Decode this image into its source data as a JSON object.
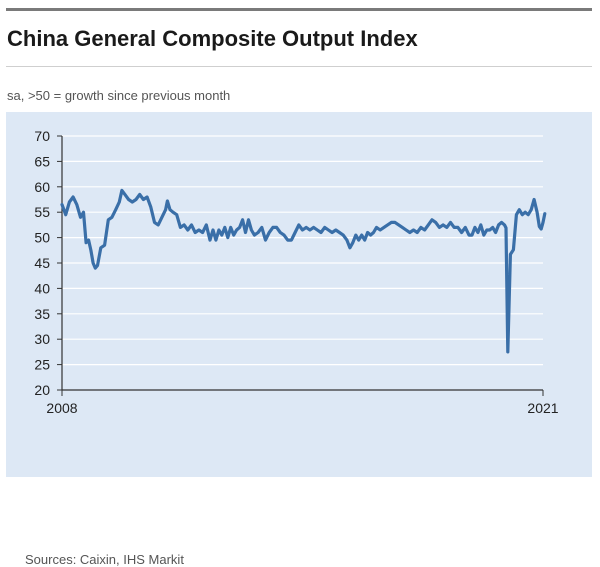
{
  "header": {
    "title": "China General Composite Output Index",
    "subtitle": "sa, >50 = growth since previous month"
  },
  "footer": {
    "source": "Sources: Caixin, IHS Markit"
  },
  "colors": {
    "line": "#3a6fa8",
    "panel": "#dde8f5",
    "grid": "#ffffff",
    "axis": "#333333"
  },
  "chart_data": {
    "type": "line",
    "title": "China General Composite Output Index",
    "subtitle": "sa, >50 = growth since previous month",
    "xlabel": "",
    "ylabel": "",
    "ylim": [
      20,
      70
    ],
    "yticks": [
      20,
      25,
      30,
      35,
      40,
      45,
      50,
      55,
      60,
      65,
      70
    ],
    "xlim": [
      2008.0,
      2021.0
    ],
    "xtick_labels": [
      {
        "x": 2008.0,
        "label": "2008"
      },
      {
        "x": 2021.0,
        "label": "2021"
      }
    ],
    "grid": true,
    "legend": "none",
    "series": [
      {
        "name": "China General Composite Output Index",
        "points": [
          [
            2008.0,
            56.5
          ],
          [
            2008.1,
            54.5
          ],
          [
            2008.2,
            57.0
          ],
          [
            2008.3,
            58.0
          ],
          [
            2008.4,
            56.5
          ],
          [
            2008.5,
            54.0
          ],
          [
            2008.58,
            55.0
          ],
          [
            2008.65,
            49.0
          ],
          [
            2008.72,
            49.5
          ],
          [
            2008.78,
            47.5
          ],
          [
            2008.84,
            45.0
          ],
          [
            2008.9,
            44.0
          ],
          [
            2008.96,
            44.5
          ],
          [
            2009.05,
            48.0
          ],
          [
            2009.15,
            48.5
          ],
          [
            2009.25,
            53.5
          ],
          [
            2009.35,
            54.0
          ],
          [
            2009.45,
            55.5
          ],
          [
            2009.55,
            57.0
          ],
          [
            2009.62,
            59.3
          ],
          [
            2009.7,
            58.5
          ],
          [
            2009.8,
            57.5
          ],
          [
            2009.9,
            57.0
          ],
          [
            2010.0,
            57.5
          ],
          [
            2010.1,
            58.5
          ],
          [
            2010.2,
            57.5
          ],
          [
            2010.3,
            58.0
          ],
          [
            2010.4,
            56.0
          ],
          [
            2010.5,
            53.0
          ],
          [
            2010.6,
            52.5
          ],
          [
            2010.7,
            54.0
          ],
          [
            2010.8,
            55.5
          ],
          [
            2010.85,
            57.2
          ],
          [
            2010.92,
            55.5
          ],
          [
            2011.0,
            55.0
          ],
          [
            2011.1,
            54.5
          ],
          [
            2011.2,
            52.0
          ],
          [
            2011.3,
            52.5
          ],
          [
            2011.4,
            51.5
          ],
          [
            2011.5,
            52.5
          ],
          [
            2011.6,
            51.0
          ],
          [
            2011.7,
            51.5
          ],
          [
            2011.8,
            51.0
          ],
          [
            2011.9,
            52.5
          ],
          [
            2012.0,
            49.5
          ],
          [
            2012.08,
            51.5
          ],
          [
            2012.16,
            49.5
          ],
          [
            2012.24,
            51.5
          ],
          [
            2012.32,
            50.5
          ],
          [
            2012.4,
            52.0
          ],
          [
            2012.48,
            50.0
          ],
          [
            2012.56,
            52.0
          ],
          [
            2012.64,
            50.5
          ],
          [
            2012.72,
            51.5
          ],
          [
            2012.8,
            52.0
          ],
          [
            2012.88,
            53.5
          ],
          [
            2012.96,
            51.0
          ],
          [
            2013.04,
            53.5
          ],
          [
            2013.12,
            51.5
          ],
          [
            2013.2,
            50.5
          ],
          [
            2013.3,
            51.0
          ],
          [
            2013.4,
            52.0
          ],
          [
            2013.5,
            49.5
          ],
          [
            2013.6,
            51.0
          ],
          [
            2013.7,
            52.0
          ],
          [
            2013.8,
            52.0
          ],
          [
            2013.9,
            51.0
          ],
          [
            2014.0,
            50.5
          ],
          [
            2014.1,
            49.5
          ],
          [
            2014.2,
            49.5
          ],
          [
            2014.3,
            51.0
          ],
          [
            2014.4,
            52.5
          ],
          [
            2014.5,
            51.5
          ],
          [
            2014.6,
            52.0
          ],
          [
            2014.7,
            51.5
          ],
          [
            2014.8,
            52.0
          ],
          [
            2014.9,
            51.5
          ],
          [
            2015.0,
            51.0
          ],
          [
            2015.1,
            52.0
          ],
          [
            2015.2,
            51.5
          ],
          [
            2015.3,
            51.0
          ],
          [
            2015.4,
            51.5
          ],
          [
            2015.5,
            51.0
          ],
          [
            2015.6,
            50.5
          ],
          [
            2015.7,
            49.5
          ],
          [
            2015.78,
            48.0
          ],
          [
            2015.86,
            49.0
          ],
          [
            2015.94,
            50.5
          ],
          [
            2016.02,
            49.5
          ],
          [
            2016.1,
            50.5
          ],
          [
            2016.18,
            49.5
          ],
          [
            2016.26,
            51.0
          ],
          [
            2016.34,
            50.5
          ],
          [
            2016.42,
            51.0
          ],
          [
            2016.5,
            52.0
          ],
          [
            2016.6,
            51.5
          ],
          [
            2016.7,
            52.0
          ],
          [
            2016.8,
            52.5
          ],
          [
            2016.9,
            53.0
          ],
          [
            2017.0,
            53.0
          ],
          [
            2017.1,
            52.5
          ],
          [
            2017.2,
            52.0
          ],
          [
            2017.3,
            51.5
          ],
          [
            2017.4,
            51.0
          ],
          [
            2017.5,
            51.5
          ],
          [
            2017.6,
            51.0
          ],
          [
            2017.7,
            52.0
          ],
          [
            2017.8,
            51.5
          ],
          [
            2017.9,
            52.5
          ],
          [
            2018.0,
            53.5
          ],
          [
            2018.1,
            53.0
          ],
          [
            2018.2,
            52.0
          ],
          [
            2018.3,
            52.5
          ],
          [
            2018.4,
            52.0
          ],
          [
            2018.5,
            53.0
          ],
          [
            2018.6,
            52.0
          ],
          [
            2018.7,
            52.0
          ],
          [
            2018.8,
            51.0
          ],
          [
            2018.9,
            52.0
          ],
          [
            2019.0,
            50.5
          ],
          [
            2019.08,
            50.5
          ],
          [
            2019.16,
            52.0
          ],
          [
            2019.24,
            51.0
          ],
          [
            2019.32,
            52.5
          ],
          [
            2019.4,
            50.5
          ],
          [
            2019.48,
            51.5
          ],
          [
            2019.56,
            51.5
          ],
          [
            2019.64,
            52.0
          ],
          [
            2019.72,
            51.0
          ],
          [
            2019.8,
            52.5
          ],
          [
            2019.88,
            53.0
          ],
          [
            2019.96,
            52.5
          ],
          [
            2020.0,
            51.9
          ],
          [
            2020.05,
            27.5
          ],
          [
            2020.12,
            46.7
          ],
          [
            2020.2,
            47.6
          ],
          [
            2020.28,
            54.5
          ],
          [
            2020.36,
            55.5
          ],
          [
            2020.44,
            54.5
          ],
          [
            2020.52,
            55.0
          ],
          [
            2020.6,
            54.5
          ],
          [
            2020.68,
            55.5
          ],
          [
            2020.76,
            57.5
          ],
          [
            2020.84,
            55.0
          ],
          [
            2020.9,
            52.2
          ],
          [
            2020.95,
            51.7
          ],
          [
            2021.0,
            53.0
          ],
          [
            2021.05,
            54.7
          ]
        ]
      }
    ]
  }
}
